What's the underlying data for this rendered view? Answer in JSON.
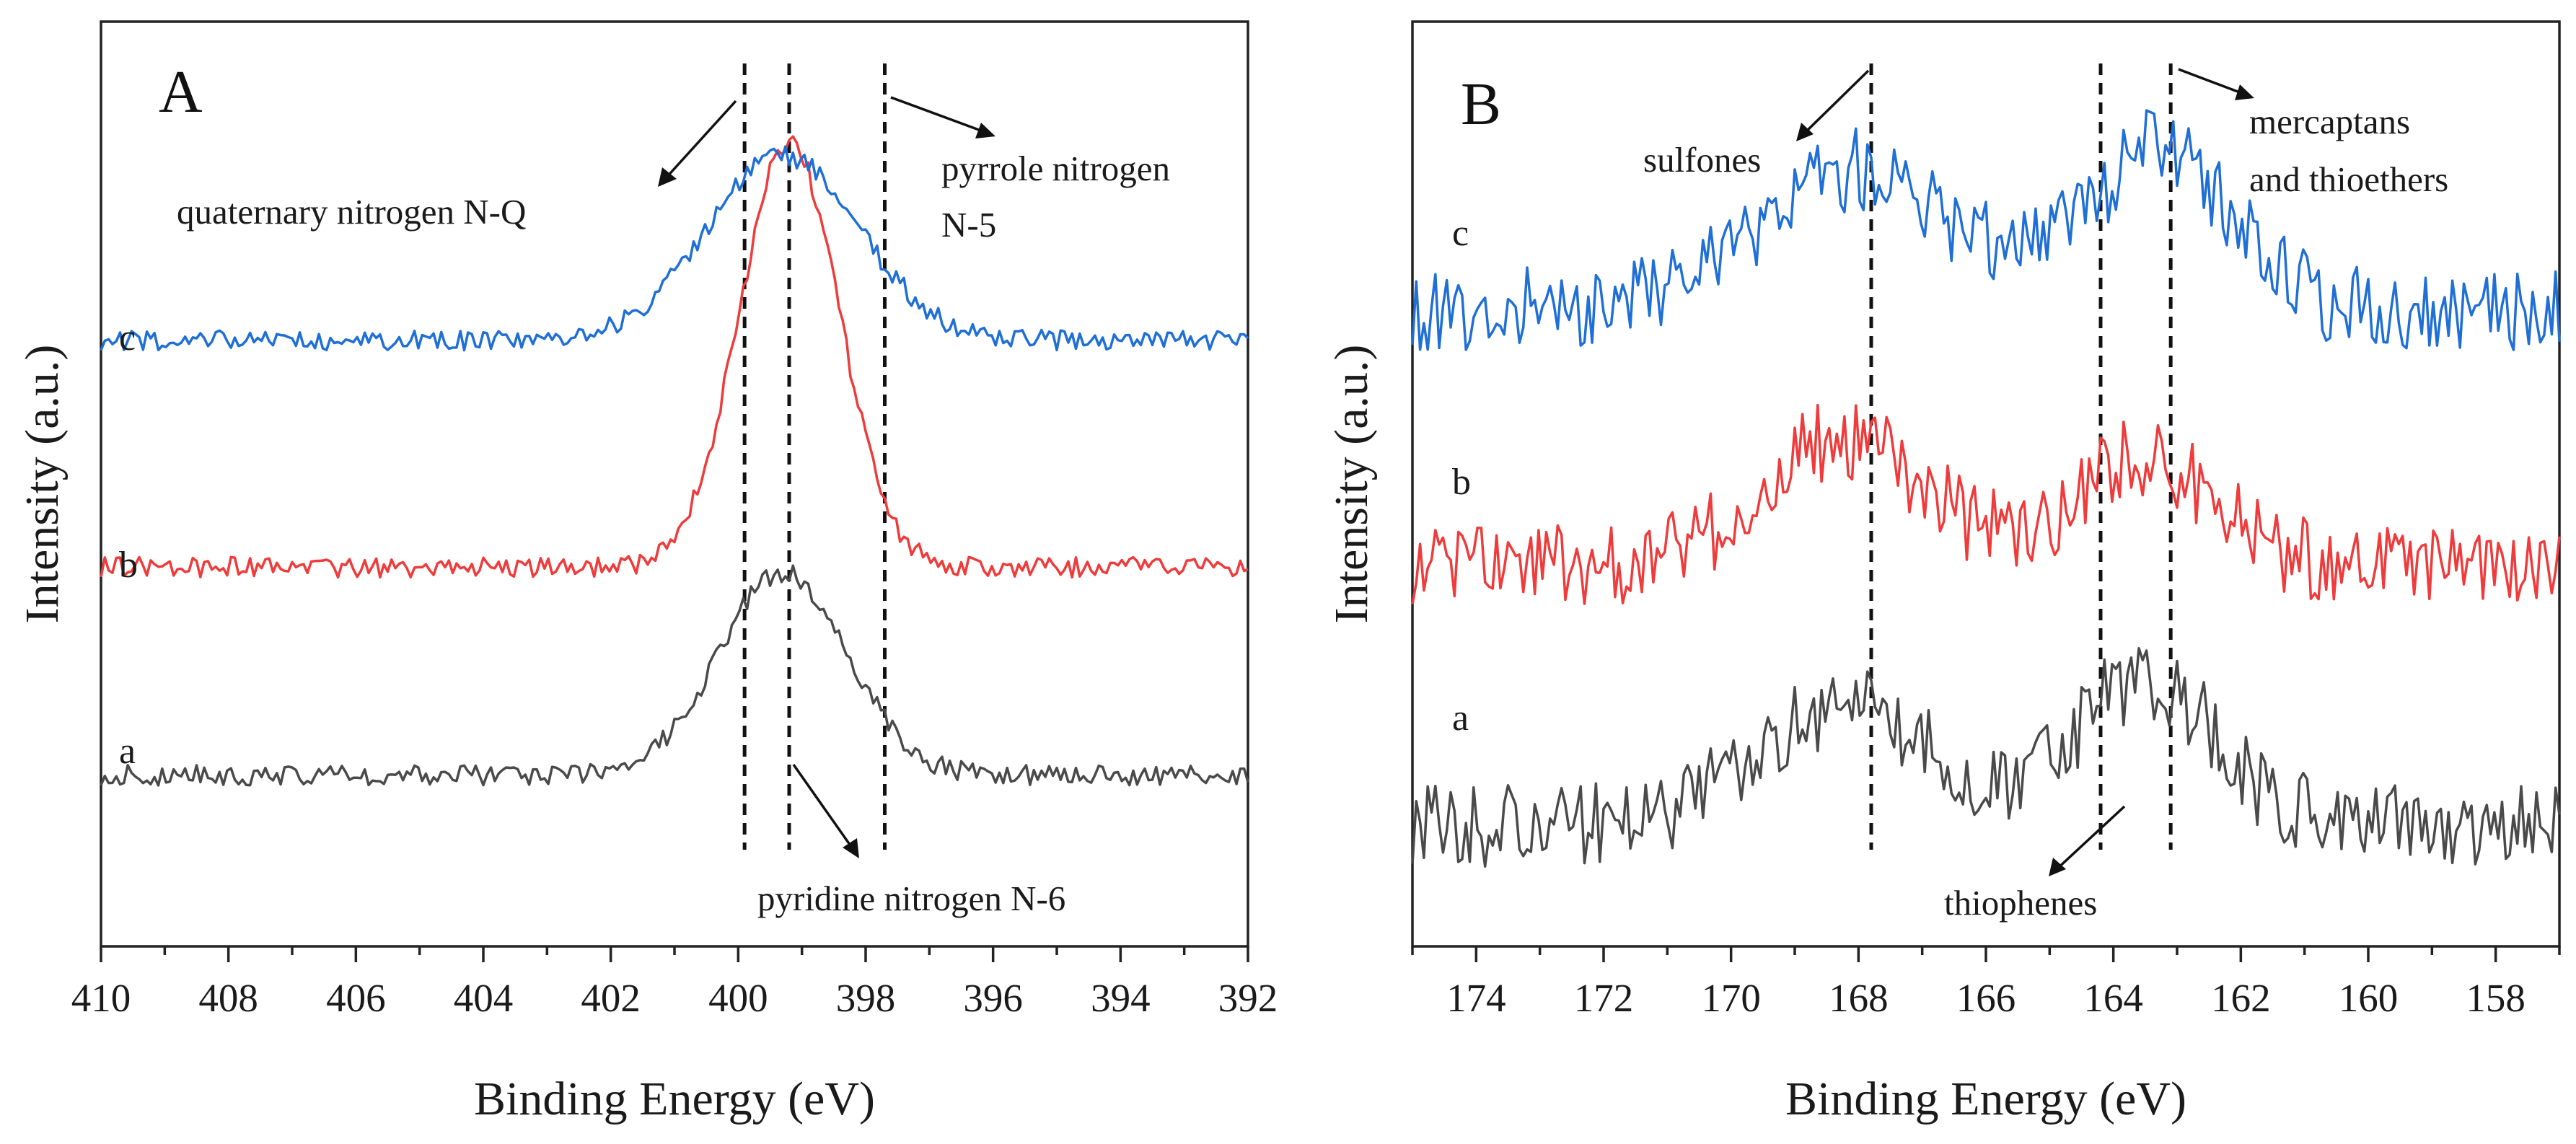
{
  "chart_data": [
    {
      "panel": "A",
      "type": "line",
      "xlabel": "Binding Energy (eV)",
      "ylabel": "Intensity (a.u.)",
      "xlim": [
        410,
        392
      ],
      "ylim": [
        0,
        1.0
      ],
      "x_ticks": [
        410,
        408,
        406,
        404,
        402,
        400,
        398,
        396,
        394,
        392
      ],
      "grid": false,
      "series": [
        {
          "name": "a",
          "color": "#4a4a4a",
          "baseline": 0.185,
          "noise": 0.011,
          "peaks": [
            {
              "center": 399.3,
              "amplitude": 0.22,
              "width": 1.0
            }
          ]
        },
        {
          "name": "b",
          "color": "#ef3b3b",
          "baseline": 0.41,
          "noise": 0.011,
          "peaks": [
            {
              "center": 399.2,
              "amplitude": 0.46,
              "width": 0.78
            }
          ]
        },
        {
          "name": "c",
          "color": "#1f6fd6",
          "baseline": 0.655,
          "noise": 0.011,
          "peaks": [
            {
              "center": 399.3,
              "amplitude": 0.2,
              "width": 1.2
            }
          ]
        }
      ],
      "reference_lines": [
        399.9,
        399.2,
        397.7
      ],
      "annotations": [
        {
          "lines": [
            "quaternary nitrogen N-Q"
          ],
          "x_ref": 399.9
        },
        {
          "lines": [
            "pyrrole nitrogen",
            "N-5"
          ],
          "x_ref": 397.7
        },
        {
          "lines": [
            "pyridine nitrogen N-6"
          ],
          "x_ref": 399.2
        }
      ]
    },
    {
      "panel": "B",
      "type": "line",
      "xlabel": "Binding Energy (eV)",
      "ylabel": "Intensity (a.u.)",
      "xlim": [
        175,
        157
      ],
      "ylim": [
        0,
        1.0
      ],
      "x_ticks": [
        174,
        172,
        170,
        168,
        166,
        164,
        162,
        160,
        158
      ],
      "grid": false,
      "series": [
        {
          "name": "a",
          "color": "#4a4a4a",
          "baseline": 0.13,
          "noise": 0.045,
          "peaks": [
            {
              "center": 168.2,
              "amplitude": 0.13,
              "width": 1.4
            },
            {
              "center": 163.5,
              "amplitude": 0.16,
              "width": 1.1
            }
          ]
        },
        {
          "name": "b",
          "color": "#ef3b3b",
          "baseline": 0.41,
          "noise": 0.045,
          "peaks": [
            {
              "center": 168.2,
              "amplitude": 0.14,
              "width": 1.3
            },
            {
              "center": 163.5,
              "amplitude": 0.12,
              "width": 1.1
            }
          ]
        },
        {
          "name": "c",
          "color": "#1f6fd6",
          "baseline": 0.69,
          "noise": 0.045,
          "peaks": [
            {
              "center": 168.0,
              "amplitude": 0.15,
              "width": 1.5
            },
            {
              "center": 163.3,
              "amplitude": 0.17,
              "width": 1.1
            }
          ]
        }
      ],
      "reference_lines": [
        167.8,
        164.2,
        163.1
      ],
      "annotations": [
        {
          "lines": [
            "sulfones"
          ],
          "x_ref": 167.8
        },
        {
          "lines": [
            "mercaptans",
            "and thioethers"
          ],
          "x_ref": 163.1
        },
        {
          "lines": [
            "thiophenes"
          ],
          "x_ref": 164.2
        }
      ]
    }
  ]
}
